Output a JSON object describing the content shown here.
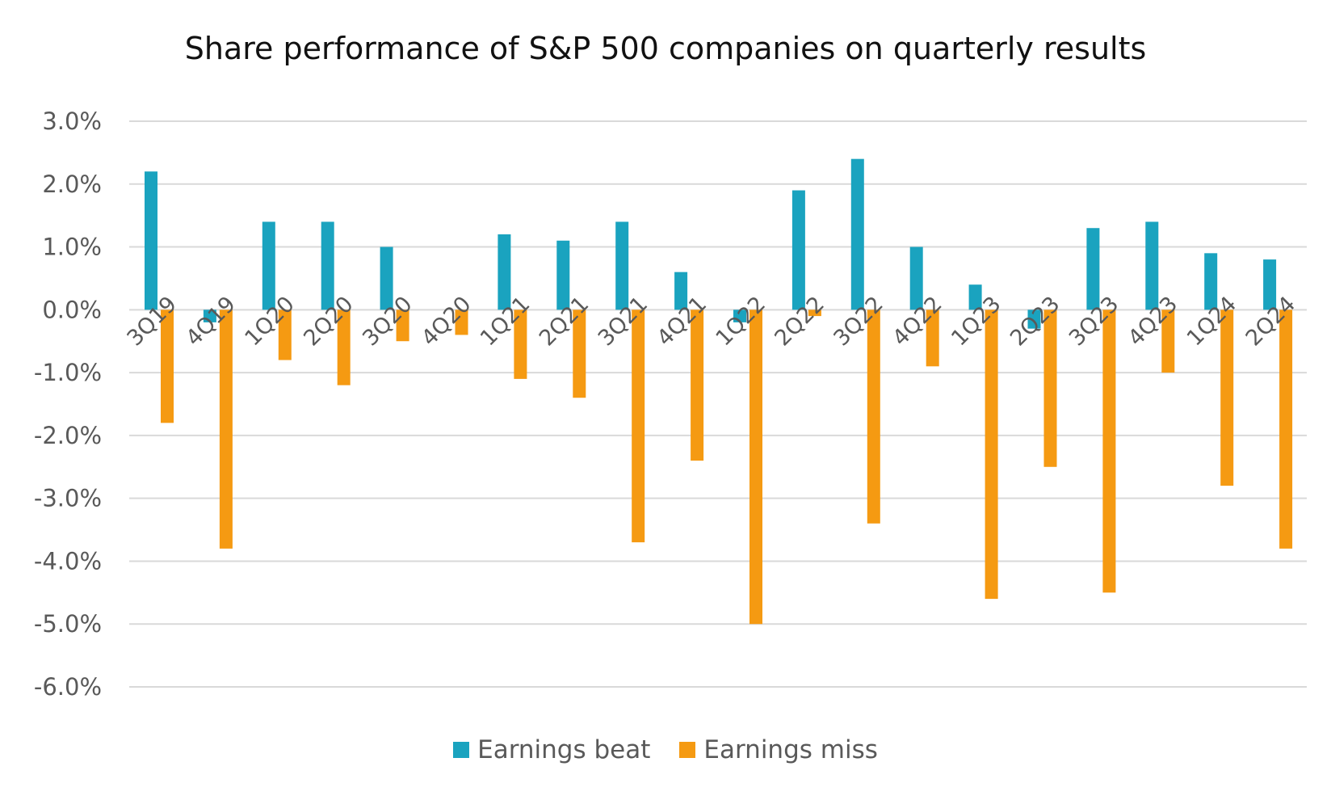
{
  "chart_data": {
    "type": "bar",
    "title": "Share performance of S&P 500 companies on quarterly results",
    "xlabel": "",
    "ylabel": "",
    "categories": [
      "3Q19",
      "4Q19",
      "1Q20",
      "2Q20",
      "3Q20",
      "4Q20",
      "1Q21",
      "2Q21",
      "3Q21",
      "4Q21",
      "1Q22",
      "2Q22",
      "3Q22",
      "4Q22",
      "1Q23",
      "2Q23",
      "3Q23",
      "4Q23",
      "1Q24",
      "2Q24"
    ],
    "series": [
      {
        "name": "Earnings beat",
        "color": "#1aa3bf",
        "values": [
          2.2,
          -0.2,
          1.4,
          1.4,
          1.0,
          0.0,
          1.2,
          1.1,
          1.4,
          0.6,
          -0.2,
          1.9,
          2.4,
          1.0,
          0.4,
          -0.3,
          1.3,
          1.4,
          0.9,
          0.8
        ]
      },
      {
        "name": "Earnings miss",
        "color": "#f59a12",
        "values": [
          -1.8,
          -3.8,
          -0.8,
          -1.2,
          -0.5,
          -0.4,
          -1.1,
          -1.4,
          -3.7,
          -2.4,
          -5.0,
          -0.1,
          -3.4,
          -0.9,
          -4.6,
          -2.5,
          -4.5,
          -1.0,
          -2.8,
          -3.8
        ]
      }
    ],
    "ylim": [
      -6.0,
      3.0
    ],
    "yticks": [
      "3.0%",
      "2.0%",
      "1.0%",
      "0.0%",
      "-1.0%",
      "-2.0%",
      "-3.0%",
      "-4.0%",
      "-5.0%",
      "-6.0%"
    ],
    "ytick_values": [
      3,
      2,
      1,
      0,
      -1,
      -2,
      -3,
      -4,
      -5,
      -6
    ],
    "grid": true,
    "legend_position": "bottom",
    "gridline_color": "#d9d9d9"
  }
}
